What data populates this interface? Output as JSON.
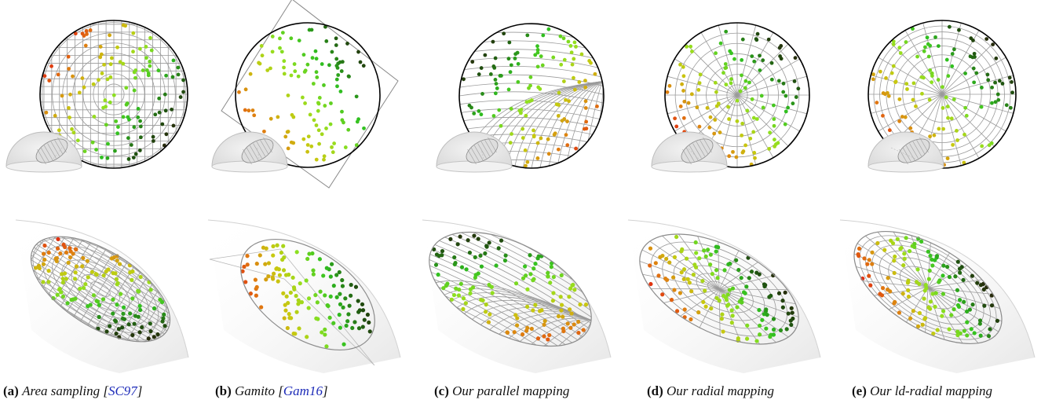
{
  "panels": [
    {
      "letter": "(a)",
      "title": "Area sampling [",
      "cite": "SC97",
      "close": "]",
      "mapping": "area"
    },
    {
      "letter": "(b)",
      "title": "Gamito [",
      "cite": "Gam16",
      "close": "]",
      "mapping": "gamito"
    },
    {
      "letter": "(c)",
      "title": "Our parallel mapping",
      "cite": "",
      "close": "",
      "mapping": "parallel"
    },
    {
      "letter": "(d)",
      "title": "Our radial mapping",
      "cite": "",
      "close": "",
      "mapping": "radial"
    },
    {
      "letter": "(e)",
      "title": "Our ld-radial mapping",
      "cite": "",
      "close": "",
      "mapping": "ldradial"
    }
  ],
  "colors": {
    "grid": "#9a9a9a",
    "outline": "#000000",
    "gradient": [
      "#e01010",
      "#e07a10",
      "#c8c810",
      "#8fe020",
      "#30c020",
      "#205010",
      "#2a1a08"
    ]
  }
}
